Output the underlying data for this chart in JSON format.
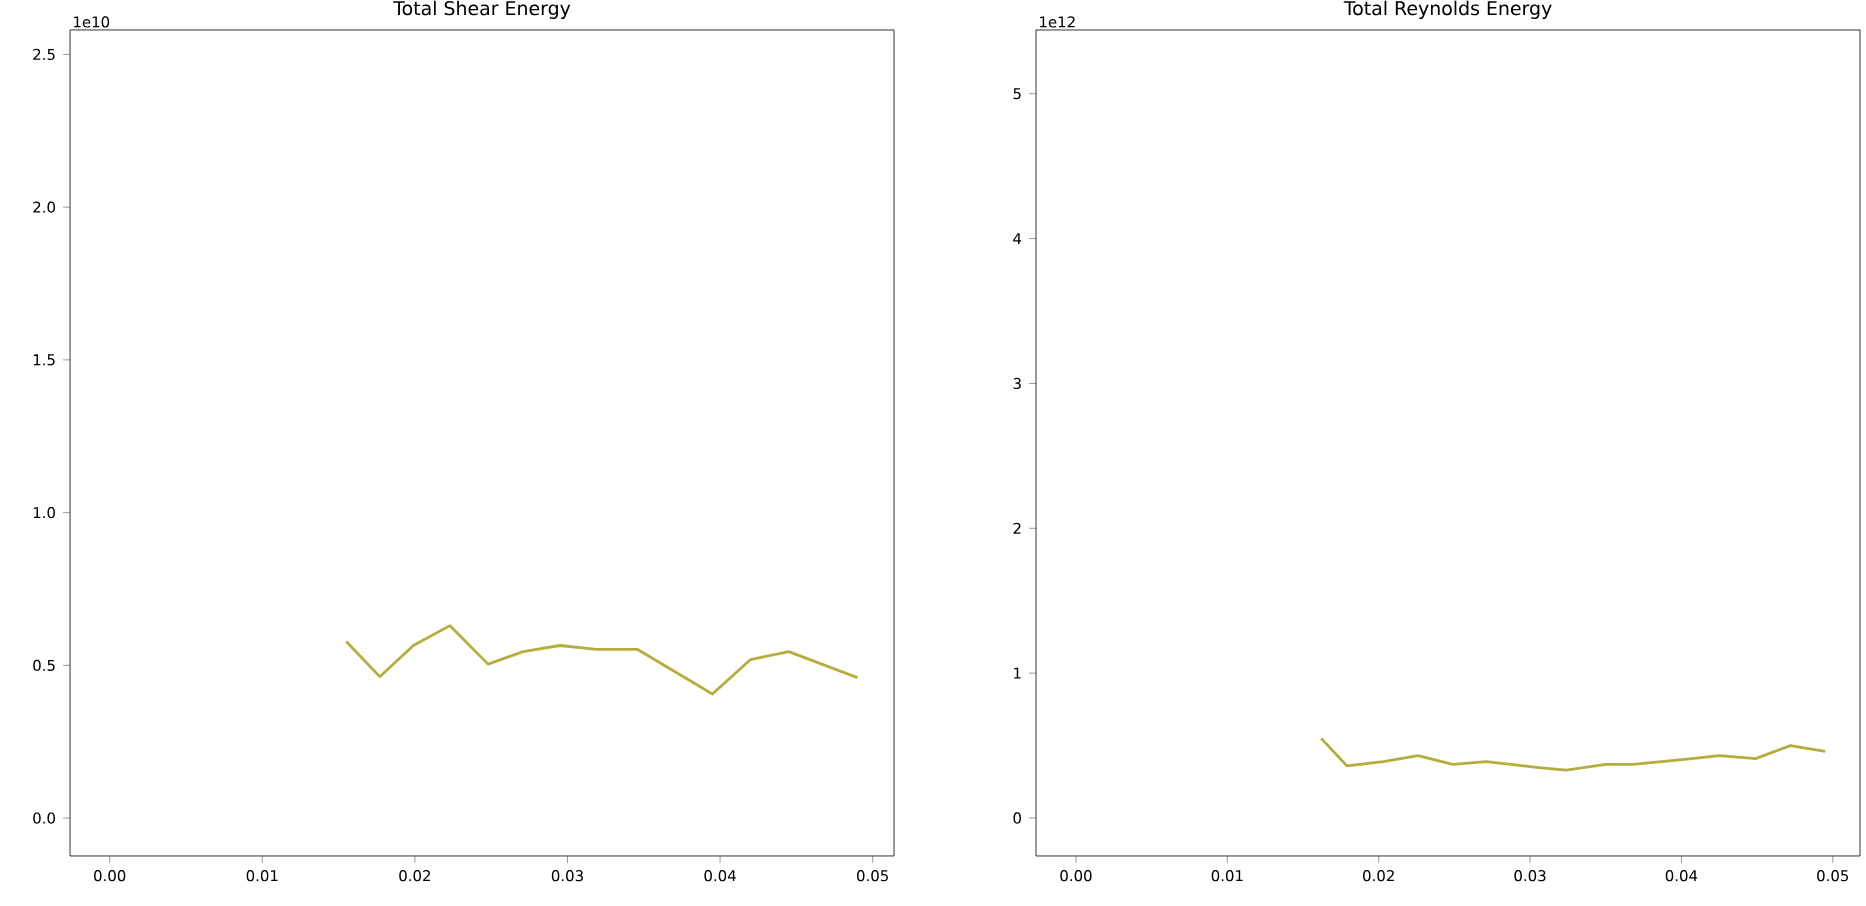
{
  "chart_data": [
    {
      "type": "line",
      "title": "Total Shear Energy",
      "annotations": [
        "1e10"
      ],
      "marker": "none",
      "line_style": "solid",
      "xlim": [
        -0.0026,
        0.0514
      ],
      "ylim": [
        -0.124,
        2.58
      ],
      "xticks": [
        {
          "value": 0,
          "label": "0.00"
        },
        {
          "value": 0.01,
          "label": "0.01"
        },
        {
          "value": 0.02,
          "label": "0.02"
        },
        {
          "value": 0.03,
          "label": "0.03"
        },
        {
          "value": 0.04,
          "label": "0.04"
        },
        {
          "value": 0.05,
          "label": "0.05"
        }
      ],
      "yticks": [
        {
          "value": 0,
          "label": "0.0"
        },
        {
          "value": 0.5,
          "label": "0.5"
        },
        {
          "value": 1,
          "label": "1.0"
        },
        {
          "value": 1.5,
          "label": "1.5"
        },
        {
          "value": 2,
          "label": "2.0"
        },
        {
          "value": 2.5,
          "label": "2.5"
        }
      ],
      "x": [
        0.0155,
        0.0177,
        0.0199,
        0.0223,
        0.0248,
        0.0271,
        0.0295,
        0.0319,
        0.0346,
        0.0395,
        0.042,
        0.0445,
        0.049
      ],
      "series": [
        {
          "color": "#b5ae3c",
          "values": [
            0.578,
            0.463,
            0.565,
            0.63,
            0.504,
            0.545,
            0.565,
            0.552,
            0.552,
            0.406,
            0.519,
            0.545,
            0.46
          ]
        }
      ]
    },
    {
      "type": "line",
      "title": "Total Reynolds Energy",
      "annotations": [
        "1e12"
      ],
      "marker": "none",
      "line_style": "solid",
      "xlim": [
        -0.00264,
        0.0518
      ],
      "ylim": [
        -0.262,
        5.44
      ],
      "xticks": [
        {
          "value": 0,
          "label": "0.00"
        },
        {
          "value": 0.01,
          "label": "0.01"
        },
        {
          "value": 0.02,
          "label": "0.02"
        },
        {
          "value": 0.03,
          "label": "0.03"
        },
        {
          "value": 0.04,
          "label": "0.04"
        },
        {
          "value": 0.05,
          "label": "0.05"
        }
      ],
      "yticks": [
        0,
        1,
        2,
        3,
        4,
        5
      ],
      "x": [
        0.0162,
        0.0179,
        0.0203,
        0.0226,
        0.0249,
        0.0271,
        0.0304,
        0.0324,
        0.035,
        0.0368,
        0.0407,
        0.0425,
        0.0449,
        0.0472,
        0.0495
      ],
      "series": [
        {
          "color": "#b5ae3c",
          "values": [
            0.55,
            0.36,
            0.39,
            0.43,
            0.37,
            0.39,
            0.35,
            0.33,
            0.37,
            0.37,
            0.41,
            0.43,
            0.41,
            0.5,
            0.46
          ]
        }
      ]
    }
  ]
}
